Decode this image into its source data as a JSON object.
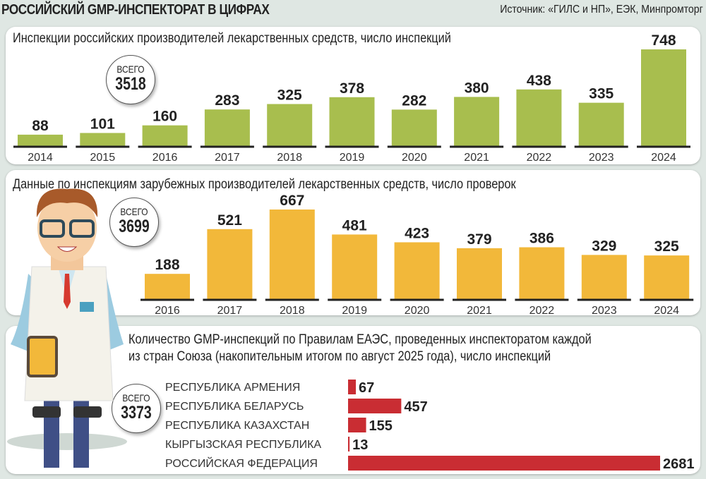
{
  "header": {
    "title": "РОССИЙСКИЙ GMP-ИНСПЕКТОРАТ В ЦИФРАХ",
    "source": "Источник: «ГИЛС и НП», ЕЭК, Минпромторг"
  },
  "chart_data": [
    {
      "type": "bar",
      "title": "Инспекции российских производителей лекарственных средств, число инспекций",
      "categories": [
        "2014",
        "2015",
        "2016",
        "2017",
        "2018",
        "2019",
        "2020",
        "2021",
        "2022",
        "2023",
        "2024"
      ],
      "values": [
        88,
        101,
        160,
        283,
        325,
        378,
        282,
        380,
        438,
        335,
        748
      ],
      "color": "#a8be4e",
      "total_label": "ВСЕГО",
      "total": "3518"
    },
    {
      "type": "bar",
      "title": "Данные по инспекциям зарубежных производителей лекарственных средств, число проверок",
      "categories": [
        "2016",
        "2017",
        "2018",
        "2019",
        "2020",
        "2021",
        "2022",
        "2023",
        "2024"
      ],
      "values": [
        188,
        521,
        667,
        481,
        423,
        379,
        386,
        329,
        325
      ],
      "color": "#f2b83a",
      "total_label": "ВСЕГО",
      "total": "3699"
    },
    {
      "type": "bar",
      "orientation": "horizontal",
      "title": "Количество GMP-инспекций по Правилам ЕАЭС, проведенных инспекторатом каждой",
      "title_line2": "из стран Союза (накопительным итогом по август 2025 года), число инспекций",
      "categories": [
        "РЕСПУБЛИКА АРМЕНИЯ",
        "РЕСПУБЛИКА БЕЛАРУСЬ",
        "РЕСПУБЛИКА КАЗАХСТАН",
        "КЫРГЫЗСКАЯ РЕСПУБЛИКА",
        "РОССИЙСКАЯ ФЕДЕРАЦИЯ"
      ],
      "values": [
        67,
        457,
        155,
        13,
        2681
      ],
      "color": "#c92d33",
      "total_label": "ВСЕГО",
      "total": "3373"
    }
  ]
}
